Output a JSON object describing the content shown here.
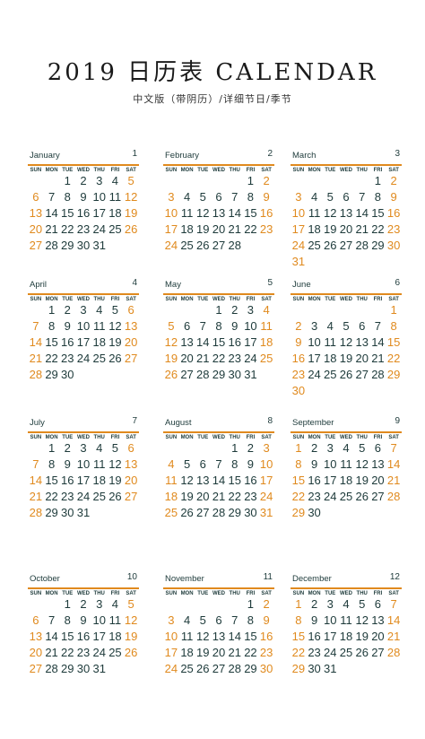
{
  "title": "2019 日历表 CALENDAR",
  "subtitle": "中文版（带阴历）/详细节日/季节",
  "weekdays": [
    "SUN",
    "MON",
    "TUE",
    "WED",
    "THU",
    "FRI",
    "SAT"
  ],
  "colors": {
    "accent": "#e08a1e",
    "text": "#1d3a3a"
  },
  "months": [
    {
      "name": "January",
      "num": "1",
      "start": 2,
      "days": 31
    },
    {
      "name": "February",
      "num": "2",
      "start": 5,
      "days": 28
    },
    {
      "name": "March",
      "num": "3",
      "start": 5,
      "days": 31
    },
    {
      "name": "April",
      "num": "4",
      "start": 1,
      "days": 30
    },
    {
      "name": "May",
      "num": "5",
      "start": 3,
      "days": 31
    },
    {
      "name": "June",
      "num": "6",
      "start": 6,
      "days": 30
    },
    {
      "name": "July",
      "num": "7",
      "start": 1,
      "days": 31
    },
    {
      "name": "August",
      "num": "8",
      "start": 4,
      "days": 31
    },
    {
      "name": "September",
      "num": "9",
      "start": 0,
      "days": 30
    },
    {
      "name": "October",
      "num": "10",
      "start": 2,
      "days": 31
    },
    {
      "name": "November",
      "num": "11",
      "start": 5,
      "days": 30
    },
    {
      "name": "December",
      "num": "12",
      "start": 0,
      "days": 31
    }
  ]
}
